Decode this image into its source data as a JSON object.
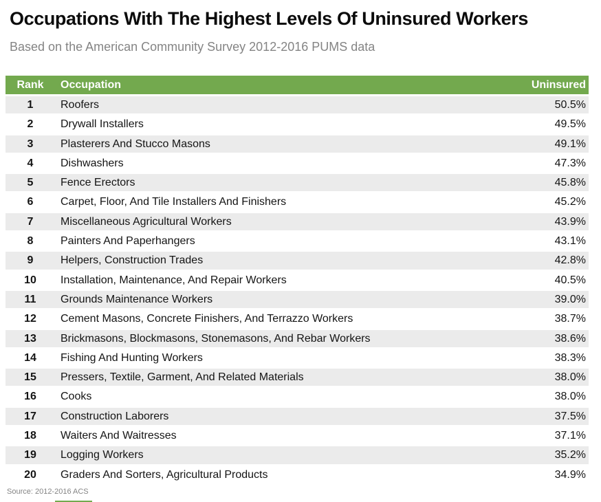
{
  "page": {
    "title": "Occupations With The Highest Levels Of Uninsured Workers",
    "subtitle": "Based on the American Community Survey 2012-2016 PUMS data",
    "source": "Source: 2012-2016 ACS"
  },
  "colors": {
    "header_green": "#73a94e",
    "stripe_gray": "#ebebeb",
    "title_black": "#0c0c0c",
    "muted_gray": "#848484"
  },
  "table": {
    "columns": {
      "rank": "Rank",
      "occupation": "Occupation",
      "uninsured": "Uninsured"
    },
    "rows": [
      {
        "rank": "1",
        "occupation": "Roofers",
        "uninsured": "50.5%"
      },
      {
        "rank": "2",
        "occupation": "Drywall Installers",
        "uninsured": "49.5%"
      },
      {
        "rank": "3",
        "occupation": "Plasterers And Stucco Masons",
        "uninsured": "49.1%"
      },
      {
        "rank": "4",
        "occupation": "Dishwashers",
        "uninsured": "47.3%"
      },
      {
        "rank": "5",
        "occupation": "Fence Erectors",
        "uninsured": "45.8%"
      },
      {
        "rank": "6",
        "occupation": "Carpet, Floor, And Tile Installers And Finishers",
        "uninsured": "45.2%"
      },
      {
        "rank": "7",
        "occupation": "Miscellaneous Agricultural Workers",
        "uninsured": "43.9%"
      },
      {
        "rank": "8",
        "occupation": "Painters And Paperhangers",
        "uninsured": "43.1%"
      },
      {
        "rank": "9",
        "occupation": "Helpers, Construction Trades",
        "uninsured": "42.8%"
      },
      {
        "rank": "10",
        "occupation": "Installation, Maintenance, And Repair Workers",
        "uninsured": "40.5%"
      },
      {
        "rank": "11",
        "occupation": "Grounds Maintenance Workers",
        "uninsured": "39.0%"
      },
      {
        "rank": "12",
        "occupation": "Cement Masons, Concrete Finishers, And Terrazzo Workers",
        "uninsured": "38.7%"
      },
      {
        "rank": "13",
        "occupation": "Brickmasons, Blockmasons, Stonemasons, And Rebar Workers",
        "uninsured": "38.6%"
      },
      {
        "rank": "14",
        "occupation": "Fishing And Hunting Workers",
        "uninsured": "38.3%"
      },
      {
        "rank": "15",
        "occupation": "Pressers, Textile, Garment, And Related Materials",
        "uninsured": "38.0%"
      },
      {
        "rank": "16",
        "occupation": "Cooks",
        "uninsured": "38.0%"
      },
      {
        "rank": "17",
        "occupation": "Construction Laborers",
        "uninsured": "37.5%"
      },
      {
        "rank": "18",
        "occupation": "Waiters And Waitresses",
        "uninsured": "37.1%"
      },
      {
        "rank": "19",
        "occupation": "Logging Workers",
        "uninsured": "35.2%"
      },
      {
        "rank": "20",
        "occupation": "Graders And Sorters, Agricultural Products",
        "uninsured": "34.9%"
      }
    ]
  },
  "chart_data": {
    "type": "table",
    "title": "Occupations With The Highest Levels Of Uninsured Workers",
    "subtitle": "Based on the American Community Survey 2012-2016 PUMS data",
    "source": "Source: 2012-2016 ACS",
    "columns": [
      "Rank",
      "Occupation",
      "Uninsured"
    ],
    "unit": "percent uninsured",
    "rows": [
      [
        1,
        "Roofers",
        50.5
      ],
      [
        2,
        "Drywall Installers",
        49.5
      ],
      [
        3,
        "Plasterers And Stucco Masons",
        49.1
      ],
      [
        4,
        "Dishwashers",
        47.3
      ],
      [
        5,
        "Fence Erectors",
        45.8
      ],
      [
        6,
        "Carpet, Floor, And Tile Installers And Finishers",
        45.2
      ],
      [
        7,
        "Miscellaneous Agricultural Workers",
        43.9
      ],
      [
        8,
        "Painters And Paperhangers",
        43.1
      ],
      [
        9,
        "Helpers, Construction Trades",
        42.8
      ],
      [
        10,
        "Installation, Maintenance, And Repair Workers",
        40.5
      ],
      [
        11,
        "Grounds Maintenance Workers",
        39.0
      ],
      [
        12,
        "Cement Masons, Concrete Finishers, And Terrazzo Workers",
        38.7
      ],
      [
        13,
        "Brickmasons, Blockmasons, Stonemasons, And Rebar Workers",
        38.6
      ],
      [
        14,
        "Fishing And Hunting Workers",
        38.3
      ],
      [
        15,
        "Pressers, Textile, Garment, And Related Materials",
        38.0
      ],
      [
        16,
        "Cooks",
        38.0
      ],
      [
        17,
        "Construction Laborers",
        37.5
      ],
      [
        18,
        "Waiters And Waitresses",
        37.1
      ],
      [
        19,
        "Logging Workers",
        35.2
      ],
      [
        20,
        "Graders And Sorters, Agricultural Products",
        34.9
      ]
    ]
  }
}
